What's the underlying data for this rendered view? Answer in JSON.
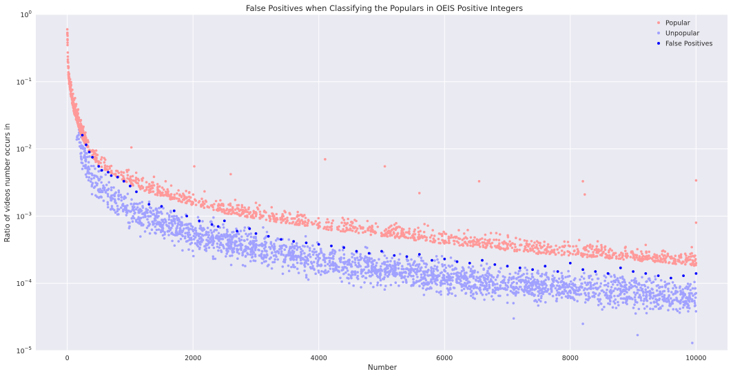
{
  "chart_data": {
    "type": "scatter",
    "title": "False Positives when Classifying the Populars in OEIS Positive Integers",
    "xlabel": "Number",
    "ylabel": "Ratio of videos number occurs in",
    "x_range": [
      -500,
      10500
    ],
    "y_scale": "log",
    "y_range": [
      1e-05,
      1
    ],
    "x_ticks": [
      0,
      2000,
      4000,
      6000,
      8000,
      10000
    ],
    "x_tick_labels": [
      "0",
      "2000",
      "4000",
      "6000",
      "8000",
      "10000"
    ],
    "y_ticks": [
      1e-05,
      0.0001,
      0.001,
      0.01,
      0.1,
      1
    ],
    "y_tick_labels": [
      {
        "base": "10",
        "exp": "−5"
      },
      {
        "base": "10",
        "exp": "−4"
      },
      {
        "base": "10",
        "exp": "−3"
      },
      {
        "base": "10",
        "exp": "−2"
      },
      {
        "base": "10",
        "exp": "−1"
      },
      {
        "base": "10",
        "exp": "0"
      }
    ],
    "grid": true,
    "background": "#EAEAF2",
    "legend_position": "top-right",
    "series": [
      {
        "name": "Popular",
        "color": "#FF9999",
        "x": [
          1,
          5,
          10,
          20,
          40,
          60,
          100,
          150,
          200,
          250,
          300,
          400,
          500,
          700,
          1000,
          1200,
          1500,
          2000,
          2500,
          3000,
          3500,
          4000,
          4500,
          5000,
          5500,
          6000,
          6500,
          7000,
          7500,
          8000,
          8500,
          9000,
          9500,
          10000
        ],
        "y": [
          0.6,
          0.35,
          0.2,
          0.12,
          0.085,
          0.065,
          0.04,
          0.028,
          0.02,
          0.015,
          0.012,
          0.008,
          0.0062,
          0.0045,
          0.0033,
          0.0026,
          0.0021,
          0.0016,
          0.0012,
          0.001,
          0.00085,
          0.00072,
          0.00062,
          0.00055,
          0.00048,
          0.00042,
          0.00038,
          0.00034,
          0.0003,
          0.00028,
          0.00026,
          0.00024,
          0.00022,
          0.0002
        ],
        "outliers": [
          {
            "x": 1020,
            "y": 0.0105
          },
          {
            "x": 2020,
            "y": 0.0055
          },
          {
            "x": 2600,
            "y": 0.0042
          },
          {
            "x": 4100,
            "y": 0.007
          },
          {
            "x": 5050,
            "y": 0.0055
          },
          {
            "x": 5600,
            "y": 0.0022
          },
          {
            "x": 6550,
            "y": 0.0033
          },
          {
            "x": 8200,
            "y": 0.0033
          },
          {
            "x": 8230,
            "y": 0.0021
          },
          {
            "x": 10000,
            "y": 0.0034
          },
          {
            "x": 10000,
            "y": 0.0008
          }
        ]
      },
      {
        "name": "Unpopular",
        "color": "#A1A1FF",
        "x": [
          150,
          200,
          250,
          300,
          400,
          500,
          700,
          1000,
          1500,
          2000,
          2500,
          3000,
          3500,
          4000,
          4500,
          5000,
          6000,
          7000,
          8000,
          9000,
          10000
        ],
        "y": [
          0.019,
          0.012,
          0.008,
          0.006,
          0.0038,
          0.0028,
          0.0018,
          0.0012,
          0.0008,
          0.00055,
          0.00042,
          0.00034,
          0.00028,
          0.00022,
          0.00018,
          0.00016,
          0.00012,
          0.0001,
          8.5e-05,
          7.5e-05,
          6e-05
        ],
        "outliers": [
          {
            "x": 7100,
            "y": 3e-05
          },
          {
            "x": 8200,
            "y": 2.5e-05
          },
          {
            "x": 9070,
            "y": 1.7e-05
          },
          {
            "x": 9940,
            "y": 1.3e-05
          }
        ]
      },
      {
        "name": "False Positives",
        "color": "#0000FF",
        "x": [
          240,
          300,
          350,
          400,
          500,
          550,
          650,
          700,
          800,
          900,
          1000,
          1100,
          1300,
          1500,
          1700,
          1900,
          2100,
          2300,
          2400,
          2500,
          2700,
          2900,
          3000,
          3200,
          3400,
          3600,
          3800,
          4000,
          4200,
          4400,
          4600,
          4800,
          5000,
          5200,
          5400,
          5600,
          5800,
          6000,
          6200,
          6400,
          6600,
          6800,
          7000,
          7200,
          7400,
          7600,
          7800,
          8000,
          8200,
          8400,
          8600,
          8800,
          9000,
          9200,
          9400,
          9600,
          9800,
          10000
        ],
        "y": [
          0.016,
          0.0115,
          0.009,
          0.0075,
          0.0055,
          0.0048,
          0.0045,
          0.004,
          0.0038,
          0.0033,
          0.0028,
          0.0023,
          0.0015,
          0.0014,
          0.0012,
          0.001,
          0.00085,
          0.00075,
          0.0007,
          0.00085,
          0.0006,
          0.00065,
          0.00055,
          0.0005,
          0.00045,
          0.00042,
          0.0004,
          0.00038,
          0.00036,
          0.00034,
          0.0003,
          0.00028,
          0.0003,
          0.00026,
          0.00025,
          0.00027,
          0.00022,
          0.00023,
          0.00021,
          0.0002,
          0.00022,
          0.00019,
          0.00018,
          0.00017,
          0.00016,
          0.00018,
          0.00015,
          0.0002,
          0.00016,
          0.00015,
          0.00014,
          0.00017,
          0.00015,
          0.00014,
          0.00013,
          0.00012,
          0.00013,
          0.00014
        ]
      }
    ]
  }
}
